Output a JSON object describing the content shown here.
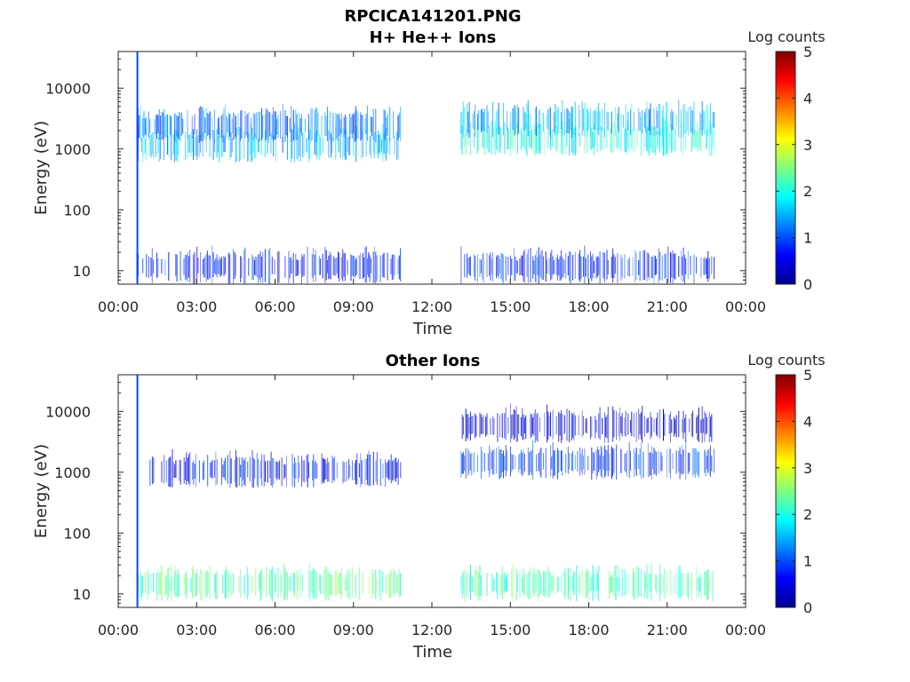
{
  "figure_title": "RPCICA141201.PNG",
  "chart_data": [
    {
      "type": "heatmap",
      "title": "H+ He++ Ions",
      "xlabel": "Time",
      "ylabel": "Energy (eV)",
      "x_ticks": [
        "00:00",
        "03:00",
        "06:00",
        "09:00",
        "12:00",
        "15:00",
        "18:00",
        "21:00",
        "00:00"
      ],
      "y_ticks": [
        "10",
        "100",
        "1000",
        "10000"
      ],
      "y_scale": "log",
      "ylim": [
        6,
        40000
      ],
      "xlim_hours": [
        0,
        24
      ],
      "data_gap_hours": [
        10.8,
        13.1
      ],
      "colorbar": {
        "label": "Log counts",
        "ticks": [
          "0",
          "1",
          "2",
          "3",
          "4",
          "5"
        ],
        "range": [
          0,
          5
        ],
        "colormap": "jet"
      },
      "bands": [
        {
          "energy_eV": 1200,
          "t_start_h": 0.7,
          "t_end_h": 10.8,
          "log_counts": 1.5
        },
        {
          "energy_eV": 2500,
          "t_start_h": 0.7,
          "t_end_h": 10.8,
          "log_counts": 1.2
        },
        {
          "energy_eV": 1500,
          "t_start_h": 13.1,
          "t_end_h": 22.8,
          "log_counts": 2.0
        },
        {
          "energy_eV": 3000,
          "t_start_h": 13.1,
          "t_end_h": 22.8,
          "log_counts": 1.5
        },
        {
          "energy_eV": 12,
          "t_start_h": 0.7,
          "t_end_h": 10.8,
          "log_counts": 0.8
        },
        {
          "energy_eV": 12,
          "t_start_h": 13.1,
          "t_end_h": 22.8,
          "log_counts": 0.8
        }
      ],
      "spikes_hours": [
        0.7
      ]
    },
    {
      "type": "heatmap",
      "title": "Other Ions",
      "xlabel": "Time",
      "ylabel": "Energy (eV)",
      "x_ticks": [
        "00:00",
        "03:00",
        "06:00",
        "09:00",
        "12:00",
        "15:00",
        "18:00",
        "21:00",
        "00:00"
      ],
      "y_ticks": [
        "10",
        "100",
        "1000",
        "10000"
      ],
      "y_scale": "log",
      "ylim": [
        6,
        40000
      ],
      "xlim_hours": [
        0,
        24
      ],
      "data_gap_hours": [
        10.8,
        13.1
      ],
      "colorbar": {
        "label": "Log counts",
        "ticks": [
          "0",
          "1",
          "2",
          "3",
          "4",
          "5"
        ],
        "range": [
          0,
          5
        ],
        "colormap": "jet"
      },
      "bands": [
        {
          "energy_eV": 15,
          "t_start_h": 0.7,
          "t_end_h": 10.8,
          "log_counts": 2.3
        },
        {
          "energy_eV": 15,
          "t_start_h": 13.1,
          "t_end_h": 22.8,
          "log_counts": 2.2
        },
        {
          "energy_eV": 1100,
          "t_start_h": 1.2,
          "t_end_h": 10.8,
          "log_counts": 0.7
        },
        {
          "energy_eV": 1500,
          "t_start_h": 13.1,
          "t_end_h": 22.8,
          "log_counts": 0.9
        },
        {
          "energy_eV": 6000,
          "t_start_h": 13.1,
          "t_end_h": 22.8,
          "log_counts": 0.4
        }
      ],
      "spikes_hours": [
        0.7
      ]
    }
  ]
}
